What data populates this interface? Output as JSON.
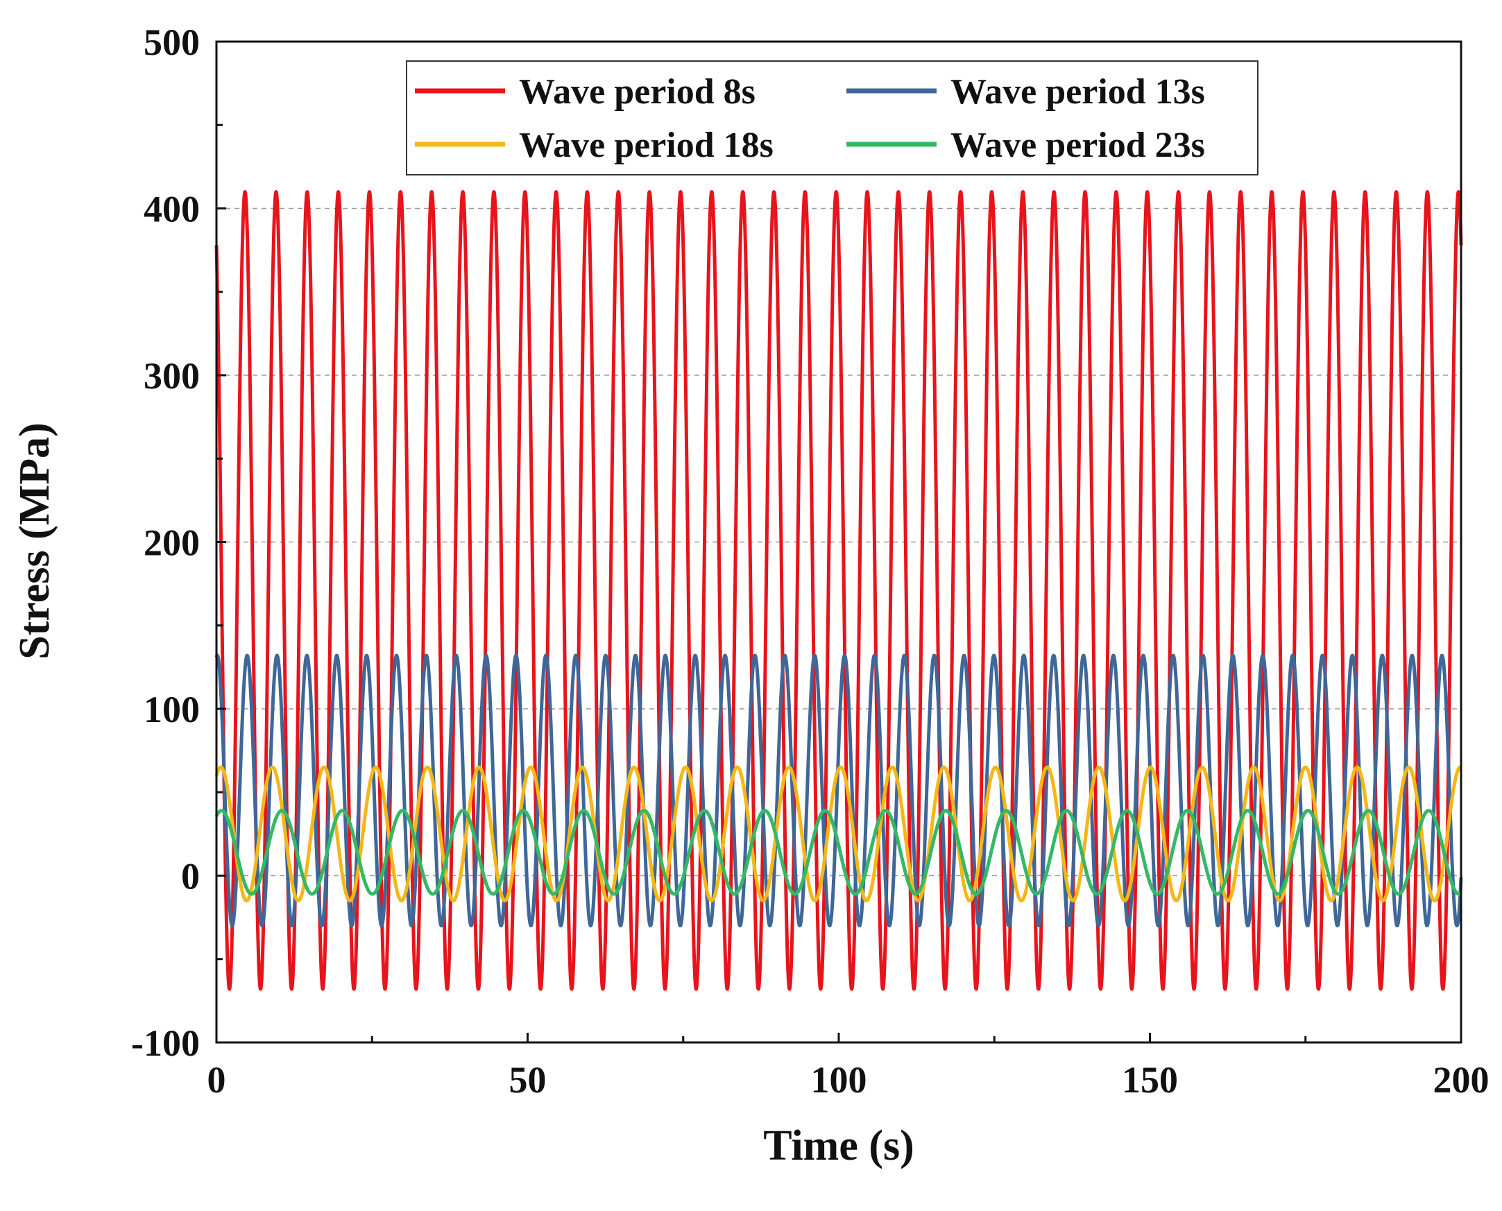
{
  "chart_data": {
    "type": "line",
    "title": "",
    "xlabel": "Time (s)",
    "ylabel": "Stress (MPa)",
    "xlim": [
      0,
      200
    ],
    "ylim": [
      -100,
      500
    ],
    "x_ticks": [
      0,
      50,
      100,
      150,
      200
    ],
    "y_ticks": [
      -100,
      0,
      100,
      200,
      300,
      400,
      500
    ],
    "x_tick_labels": [
      "0",
      "50",
      "100",
      "150",
      "200"
    ],
    "y_tick_labels": [
      "-100",
      "0",
      "100",
      "200",
      "300",
      "400",
      "500"
    ],
    "gridlines_y": [
      0,
      100,
      200,
      300,
      400
    ],
    "legend_position": "top",
    "series": [
      {
        "name": "Wave period 8s",
        "color": "#e8141c",
        "mean": 171,
        "amplitude": 239,
        "period_s": 5.0,
        "phase_deg": 120
      },
      {
        "name": "Wave period 13s",
        "color": "#3f6797",
        "mean": 51,
        "amplitude": 81,
        "period_s": 4.8,
        "phase_deg": 80
      },
      {
        "name": "Wave period 18s",
        "color": "#f5b718",
        "mean": 25,
        "amplitude": 40,
        "period_s": 8.3,
        "phase_deg": 60
      },
      {
        "name": "Wave period 23s",
        "color": "#35b866",
        "mean": 14,
        "amplitude": 25,
        "period_s": 9.7,
        "phase_deg": 60
      }
    ]
  }
}
